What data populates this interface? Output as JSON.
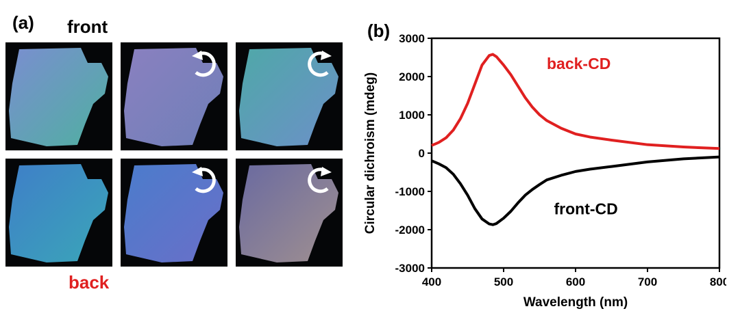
{
  "panel_a": {
    "label": "(a)",
    "front_label": "front",
    "back_label": "back",
    "photos": [
      {
        "row": "front",
        "rotation": "none",
        "tint": "#7a8ed0",
        "tint2": "#4fb0a0"
      },
      {
        "row": "front",
        "rotation": "counterclockwise",
        "tint": "#8a80c0",
        "tint2": "#6f7fb8"
      },
      {
        "row": "front",
        "rotation": "clockwise",
        "tint": "#4fa8a8",
        "tint2": "#6c90c8"
      },
      {
        "row": "back",
        "rotation": "none",
        "tint": "#3f7fc8",
        "tint2": "#3aa6b8"
      },
      {
        "row": "back",
        "rotation": "counterclockwise",
        "tint": "#4b7ccc",
        "tint2": "#6a6fc8"
      },
      {
        "row": "back",
        "rotation": "clockwise",
        "tint": "#6a6aa0",
        "tint2": "#a09090"
      }
    ],
    "arrow_icons": [
      "counterclockwise-arrow-icon",
      "clockwise-arrow-icon"
    ]
  },
  "panel_b": {
    "label": "(b)"
  },
  "chart_data": {
    "type": "line",
    "xlabel": "Wavelength (nm)",
    "ylabel": "Circular dichroism (mdeg)",
    "xlim": [
      400,
      800
    ],
    "ylim": [
      -3000,
      3000
    ],
    "xticks": [
      400,
      500,
      600,
      700,
      800
    ],
    "yticks": [
      -3000,
      -2000,
      -1000,
      0,
      1000,
      2000,
      3000
    ],
    "grid": false,
    "series": [
      {
        "name": "back-CD",
        "color": "#e02020",
        "x": [
          400,
          410,
          420,
          430,
          440,
          450,
          460,
          470,
          480,
          485,
          490,
          500,
          510,
          520,
          530,
          540,
          550,
          560,
          580,
          600,
          620,
          650,
          700,
          750,
          800
        ],
        "y": [
          200,
          280,
          400,
          600,
          900,
          1300,
          1800,
          2300,
          2550,
          2580,
          2520,
          2300,
          2050,
          1750,
          1450,
          1200,
          1000,
          850,
          650,
          500,
          420,
          340,
          220,
          160,
          120
        ]
      },
      {
        "name": "front-CD",
        "color": "#000000",
        "x": [
          400,
          410,
          420,
          430,
          440,
          450,
          460,
          470,
          480,
          485,
          490,
          500,
          510,
          520,
          530,
          540,
          550,
          560,
          580,
          600,
          620,
          650,
          700,
          750,
          800
        ],
        "y": [
          -200,
          -280,
          -380,
          -550,
          -800,
          -1100,
          -1450,
          -1720,
          -1850,
          -1870,
          -1840,
          -1700,
          -1520,
          -1300,
          -1100,
          -950,
          -820,
          -700,
          -580,
          -480,
          -420,
          -350,
          -230,
          -150,
          -100
        ]
      }
    ],
    "annotations": [
      {
        "text": "back-CD",
        "x": 560,
        "y": 2200,
        "color": "#e02020"
      },
      {
        "text": "front-CD",
        "x": 570,
        "y": -1600,
        "color": "#000000"
      }
    ]
  }
}
